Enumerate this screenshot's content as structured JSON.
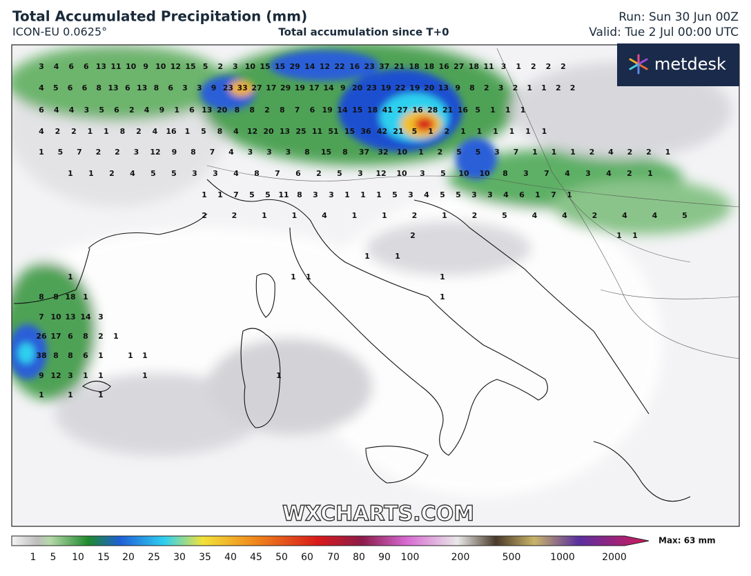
{
  "header": {
    "title": "Total Accumulated Precipitation (mm)",
    "model": "ICON-EU 0.0625°",
    "subtitle": "Total accumulation since T+0",
    "run": "Run: Sun 30 Jun 00Z",
    "valid": "Valid: Tue 2 Jul 00:00 UTC"
  },
  "logo": "metdesk",
  "watermark": "WXCHARTS.COM",
  "map": {
    "labels": [
      [
        3,
        4,
        6,
        6,
        13,
        11,
        10,
        9,
        10,
        12,
        15,
        5,
        2,
        3,
        10,
        15,
        15,
        29,
        14,
        12,
        22,
        16,
        23,
        37,
        21,
        18,
        18,
        16,
        27,
        18,
        11,
        3,
        1,
        2,
        2,
        2
      ],
      [
        4,
        5,
        6,
        6,
        8,
        13,
        6,
        13,
        8,
        6,
        3,
        3,
        9,
        23,
        33,
        27,
        17,
        29,
        19,
        17,
        14,
        9,
        20,
        23,
        19,
        22,
        19,
        20,
        13,
        9,
        8,
        2,
        3,
        2,
        1,
        1,
        2,
        2
      ],
      [
        6,
        4,
        4,
        3,
        5,
        6,
        2,
        4,
        9,
        1,
        6,
        13,
        20,
        8,
        8,
        2,
        8,
        7,
        6,
        19,
        14,
        15,
        18,
        41,
        27,
        16,
        28,
        21,
        16,
        5,
        1,
        1,
        1
      ],
      [
        4,
        2,
        2,
        1,
        1,
        8,
        2,
        4,
        16,
        1,
        5,
        8,
        4,
        12,
        20,
        13,
        25,
        11,
        51,
        15,
        36,
        42,
        21,
        5,
        1,
        2,
        1,
        1,
        1,
        1,
        1,
        1
      ],
      [
        1,
        5,
        7,
        2,
        2,
        3,
        12,
        9,
        8,
        7,
        4,
        3,
        3,
        3,
        8,
        15,
        8,
        37,
        32,
        10,
        1,
        2,
        5,
        5,
        3,
        7,
        1,
        1,
        1,
        2,
        4,
        2,
        2,
        1
      ],
      [
        1,
        1,
        2,
        4,
        5,
        5,
        3,
        3,
        4,
        8,
        7,
        6,
        2,
        5,
        3,
        12,
        10,
        3,
        5,
        10,
        10,
        8,
        3,
        7,
        4,
        3,
        4,
        2,
        1
      ],
      [
        1,
        1,
        7,
        5,
        5,
        11,
        8,
        3,
        3,
        1,
        1,
        1,
        5,
        3,
        4,
        5,
        5,
        3,
        3,
        4,
        6,
        1,
        7,
        1
      ],
      [
        2,
        2,
        1,
        1,
        4,
        1,
        1,
        2,
        1,
        2,
        5,
        4,
        4,
        2,
        4,
        4,
        5
      ],
      [
        2,
        1,
        1
      ],
      [
        1,
        1
      ],
      [
        1,
        1,
        1,
        1
      ],
      [
        8,
        8,
        18,
        1,
        1
      ],
      [
        7,
        10,
        13,
        14,
        3
      ],
      [
        26,
        17,
        6,
        8,
        2,
        1
      ],
      [
        38,
        8,
        8,
        6,
        1,
        1,
        1
      ],
      [
        9,
        12,
        3,
        1,
        1,
        1,
        1
      ],
      [
        1,
        1,
        1
      ]
    ]
  },
  "colorbar": {
    "ticks": [
      "1",
      "5",
      "10",
      "15",
      "20",
      "25",
      "30",
      "35",
      "40",
      "45",
      "50",
      "60",
      "70",
      "80",
      "90",
      "100",
      "200",
      "500",
      "1000",
      "2000"
    ],
    "max_label": "Max: 63 mm"
  }
}
